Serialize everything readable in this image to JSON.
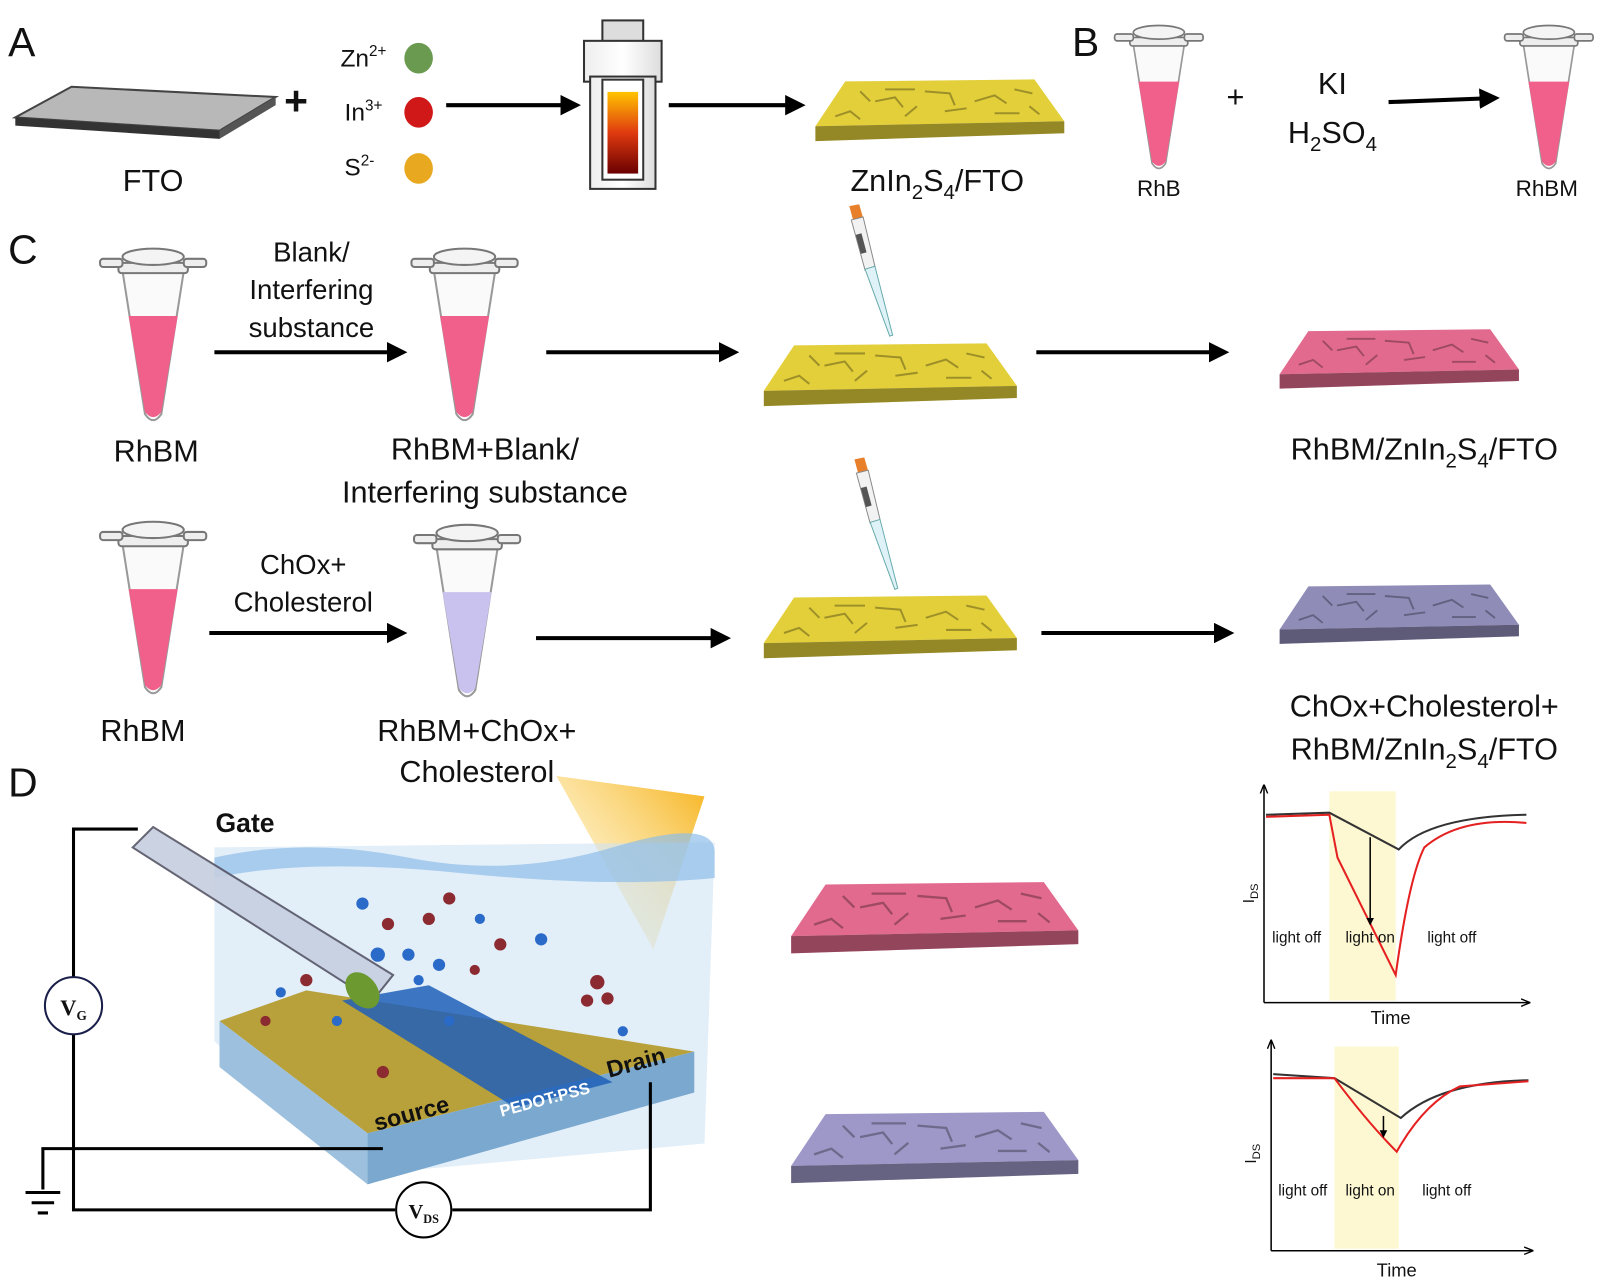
{
  "panel_labels": [
    "A",
    "B",
    "C",
    "D"
  ],
  "panel_a": {
    "substrate": "FTO",
    "plus": "+",
    "ions": [
      [
        "Zn",
        "2+"
      ],
      [
        "In",
        "3+"
      ],
      [
        "S",
        "2-"
      ]
    ],
    "product": [
      "ZnIn",
      "2",
      "S",
      "4",
      "/FTO"
    ]
  },
  "panel_b": {
    "reactant": "RhB",
    "plus": "+",
    "reagent_1": "KI",
    "reagent_2": [
      "H",
      "2",
      "SO",
      "4"
    ],
    "product": "RhBM"
  },
  "panel_c": {
    "row_1": {
      "start": "RhBM",
      "condition": [
        "Blank/",
        "Interfering",
        "substance"
      ],
      "mixture": [
        "RhBM+Blank/",
        "Interfering substance"
      ],
      "product": [
        "RhBM/ZnIn",
        "2",
        "S",
        "4",
        "/FTO"
      ]
    },
    "row_2": {
      "start": "RhBM",
      "condition": [
        "ChOx+",
        "Cholesterol"
      ],
      "mixture": [
        "RhBM+ChOx+",
        "Cholesterol"
      ],
      "product_line_1": "ChOx+Cholesterol+",
      "product_line_2": [
        "RhBM/ZnIn",
        "2",
        "S",
        "4",
        "/FTO"
      ]
    }
  },
  "panel_d": {
    "gate": "Gate",
    "gate_voltage": [
      "V",
      "G"
    ],
    "drain_voltage": [
      "V",
      "DS"
    ],
    "source": "source",
    "channel": "PEDOT:PSS",
    "drain": "Drain",
    "plots": [
      {
        "y_label": [
          "I",
          "DS"
        ],
        "phases": [
          "light off",
          "light on",
          "light off"
        ],
        "x_label": "Time"
      },
      {
        "y_label": [
          "I",
          "DS"
        ],
        "phases": [
          "light off",
          "light on",
          "light off"
        ],
        "x_label": "Time"
      }
    ]
  }
}
